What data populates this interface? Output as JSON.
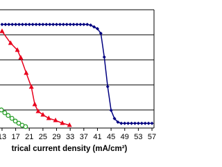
{
  "chart_data": {
    "type": "line",
    "x_title": "trical current density (mA/cm²)",
    "xlim": [
      12.4,
      57.6
    ],
    "xticks": [
      13,
      17,
      21,
      25,
      29,
      33,
      37,
      41,
      45,
      49,
      53,
      57
    ],
    "ylim": [
      0,
      100
    ],
    "series": [
      {
        "color": "#000080",
        "marker": "diamond",
        "x": [
          13,
          14,
          15,
          16,
          17,
          18,
          19,
          20,
          21,
          22,
          23,
          24,
          25,
          26,
          27,
          28,
          29,
          30,
          31,
          32,
          33,
          34,
          35,
          36,
          37,
          38,
          39,
          40,
          41,
          42,
          43,
          44,
          45,
          46,
          47,
          48,
          49,
          50,
          51,
          52,
          53,
          54,
          55,
          56,
          57
        ],
        "values": [
          87.6,
          87.6,
          87.6,
          87.6,
          87.6,
          87.6,
          87.6,
          87.6,
          87.6,
          87.6,
          87.6,
          87.6,
          87.6,
          87.6,
          87.6,
          87.6,
          87.6,
          87.6,
          87.6,
          87.6,
          87.6,
          87.6,
          87.6,
          87.6,
          87.6,
          87.6,
          87,
          85.5,
          84,
          80,
          60,
          35,
          15,
          8,
          5,
          4,
          4,
          4,
          4,
          4,
          4,
          4,
          4,
          4,
          4
        ]
      },
      {
        "color": "#e8001c",
        "marker": "triangle",
        "x": [
          13,
          15.5,
          17.5,
          18.5,
          20.1,
          21.6,
          22.6,
          23.6,
          25,
          26.7,
          28.7,
          30.7,
          32.8
        ],
        "values": [
          81.8,
          71.8,
          65.9,
          59.4,
          46.5,
          34.7,
          20,
          14.1,
          11.2,
          8.2,
          6.5,
          4.1,
          2.4
        ]
      },
      {
        "color": "#2ca02c",
        "marker": "circle",
        "x": [
          12.8,
          13.8,
          14.8,
          15.9,
          16.9,
          17.9,
          18.9,
          19.9
        ],
        "values": [
          15.3,
          12.9,
          10.6,
          8.2,
          5.9,
          4.1,
          2.4,
          1.2
        ]
      }
    ]
  }
}
